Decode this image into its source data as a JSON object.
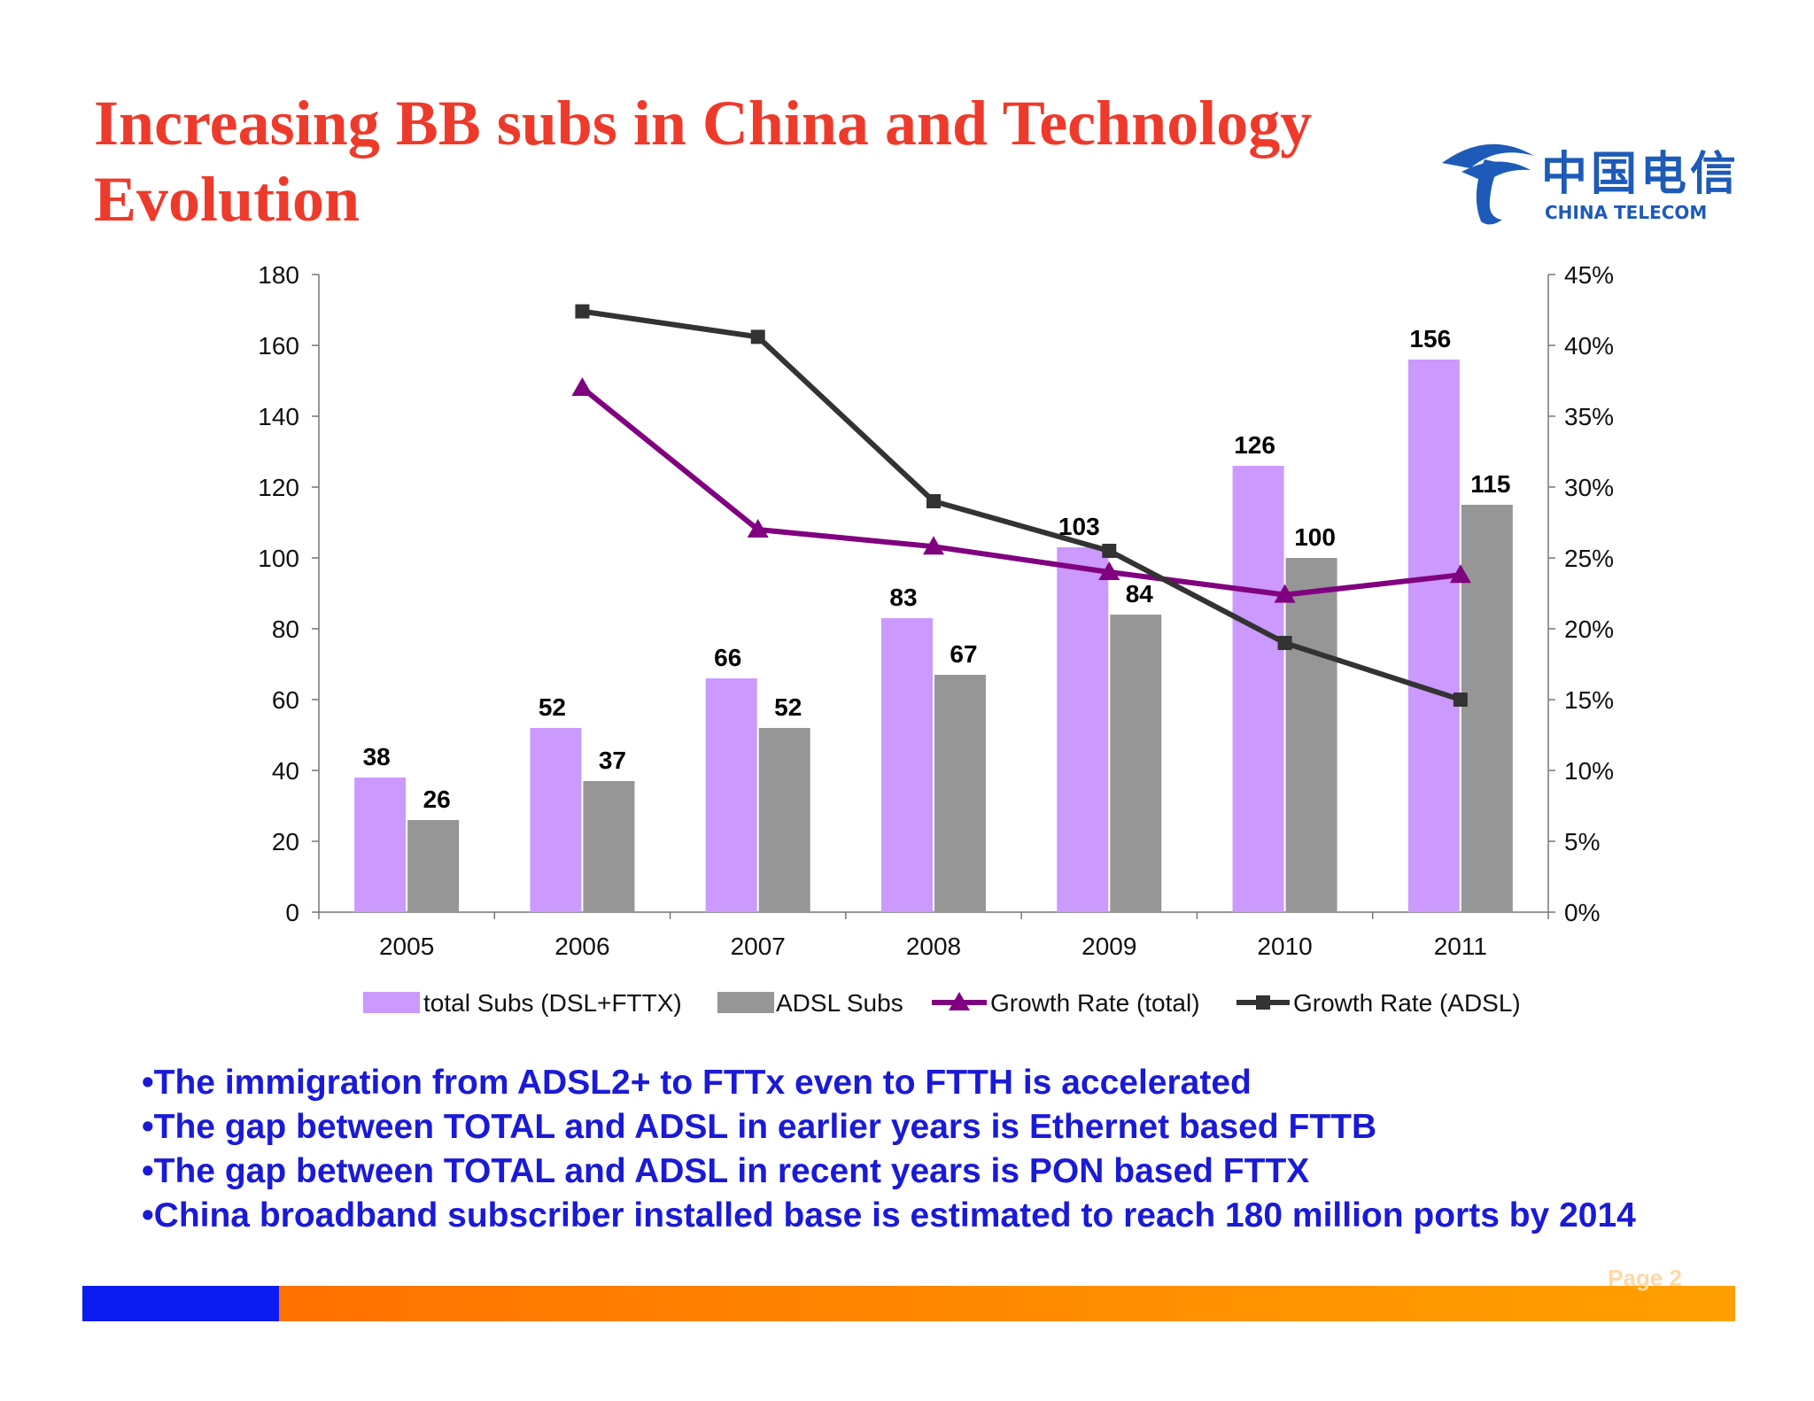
{
  "slide": {
    "title_line1": "Increasing BB subs in China and Technology",
    "title_line2": "Evolution",
    "logo_cn": "中国电信",
    "logo_en": "CHINA TELECOM",
    "page_label": "Page 2"
  },
  "colors": {
    "title": "#ee3a2b",
    "total_bar": "#cc99ff",
    "adsl_bar": "#969696",
    "growth_total": "#800080",
    "growth_adsl": "#333333",
    "bullets": "#1a1ad6"
  },
  "bullets": [
    "•The immigration from ADSL2+ to FTTx even to FTTH is accelerated",
    "•The gap between TOTAL and ADSL in earlier years is Ethernet based FTTB",
    "•The gap between TOTAL and ADSL in recent years is PON based FTTX",
    "•China broadband subscriber installed base is estimated to reach 180 million ports by 2014"
  ],
  "chart_data": {
    "type": "bar",
    "categories": [
      "2005",
      "2006",
      "2007",
      "2008",
      "2009",
      "2010",
      "2011"
    ],
    "series": [
      {
        "name": "total Subs (DSL+FTTX)",
        "type": "bar",
        "axis": "left",
        "values": [
          38,
          52,
          66,
          83,
          103,
          126,
          156
        ]
      },
      {
        "name": "ADSL Subs",
        "type": "bar",
        "axis": "left",
        "values": [
          26,
          37,
          52,
          67,
          84,
          100,
          115
        ]
      },
      {
        "name": "Growth Rate (total)",
        "type": "line",
        "axis": "right",
        "marker": "triangle",
        "values": [
          null,
          0.37,
          0.27,
          0.258,
          0.24,
          0.224,
          0.238
        ]
      },
      {
        "name": "Growth Rate (ADSL)",
        "type": "line",
        "axis": "right",
        "marker": "square",
        "values": [
          null,
          0.424,
          0.406,
          0.29,
          0.255,
          0.19,
          0.15
        ]
      }
    ],
    "y_left": {
      "min": 0,
      "max": 180,
      "ticks": [
        "0",
        "20",
        "40",
        "60",
        "80",
        "100",
        "120",
        "140",
        "160",
        "180"
      ]
    },
    "y_right": {
      "min": 0,
      "max": 0.45,
      "ticks": [
        "0%",
        "5%",
        "10%",
        "15%",
        "20%",
        "25%",
        "30%",
        "35%",
        "40%",
        "45%"
      ]
    },
    "grid": false,
    "legend": "bottom"
  }
}
